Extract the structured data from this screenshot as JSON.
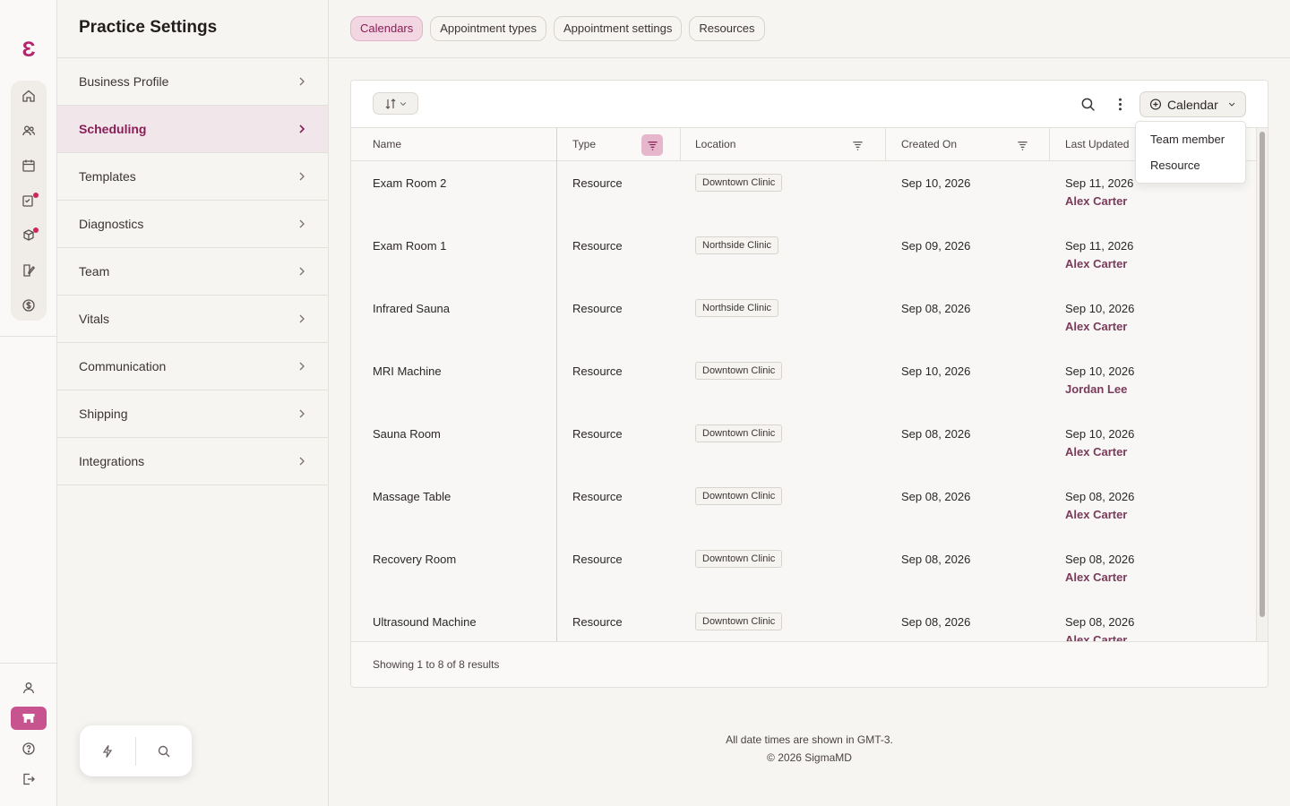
{
  "rail": {
    "logo": "Ɛ"
  },
  "settings": {
    "title": "Practice Settings",
    "items": [
      {
        "label": "Business Profile"
      },
      {
        "label": "Scheduling"
      },
      {
        "label": "Templates"
      },
      {
        "label": "Diagnostics"
      },
      {
        "label": "Team"
      },
      {
        "label": "Vitals"
      },
      {
        "label": "Communication"
      },
      {
        "label": "Shipping"
      },
      {
        "label": "Integrations"
      }
    ]
  },
  "tabs": [
    {
      "label": "Calendars"
    },
    {
      "label": "Appointment types"
    },
    {
      "label": "Appointment settings"
    },
    {
      "label": "Resources"
    }
  ],
  "toolbar": {
    "calendar_button": "Calendar"
  },
  "dropdown": {
    "options": [
      "Team member",
      "Resource"
    ]
  },
  "table": {
    "columns": [
      "Name",
      "Type",
      "Location",
      "Created On",
      "Last Updated"
    ],
    "rows": [
      {
        "name": "Exam Room 2",
        "type": "Resource",
        "location": "Downtown Clinic",
        "created": "Sep 10, 2026",
        "updated": "Sep 11, 2026",
        "by": "Alex Carter"
      },
      {
        "name": "Exam Room 1",
        "type": "Resource",
        "location": "Northside Clinic",
        "created": "Sep 09, 2026",
        "updated": "Sep 11, 2026",
        "by": "Alex Carter"
      },
      {
        "name": "Infrared Sauna",
        "type": "Resource",
        "location": "Northside Clinic",
        "created": "Sep 08, 2026",
        "updated": "Sep 10, 2026",
        "by": "Alex Carter"
      },
      {
        "name": "MRI Machine",
        "type": "Resource",
        "location": "Downtown Clinic",
        "created": "Sep 10, 2026",
        "updated": "Sep 10, 2026",
        "by": "Jordan Lee"
      },
      {
        "name": "Sauna Room",
        "type": "Resource",
        "location": "Downtown Clinic",
        "created": "Sep 08, 2026",
        "updated": "Sep 10, 2026",
        "by": "Alex Carter"
      },
      {
        "name": "Massage Table",
        "type": "Resource",
        "location": "Downtown Clinic",
        "created": "Sep 08, 2026",
        "updated": "Sep 08, 2026",
        "by": "Alex Carter"
      },
      {
        "name": "Recovery Room",
        "type": "Resource",
        "location": "Downtown Clinic",
        "created": "Sep 08, 2026",
        "updated": "Sep 08, 2026",
        "by": "Alex Carter"
      },
      {
        "name": "Ultrasound Machine",
        "type": "Resource",
        "location": "Downtown Clinic",
        "created": "Sep 08, 2026",
        "updated": "Sep 08, 2026",
        "by": "Alex Carter"
      }
    ],
    "footer": "Showing 1 to 8 of 8 results"
  },
  "legal": {
    "timezone": "All date times are shown in GMT-3.",
    "copyright": "© 2026 SigmaMD"
  },
  "colors": {
    "accent": "#b3266f",
    "selected_bg": "#f1e7ea"
  }
}
